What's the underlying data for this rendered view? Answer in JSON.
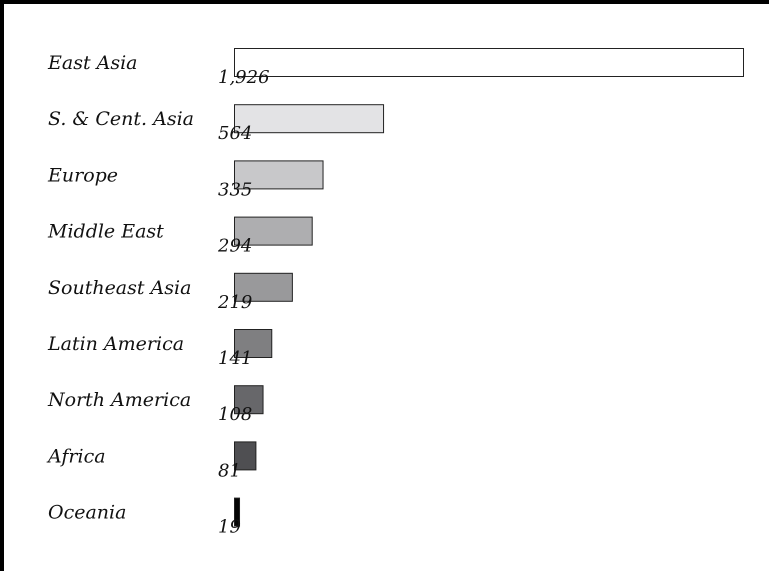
{
  "chart_data": {
    "type": "bar",
    "orientation": "horizontal",
    "title": "",
    "xlabel": "",
    "ylabel": "",
    "categories": [
      "East Asia",
      "S. & Cent. Asia",
      "Europe",
      "Middle East",
      "Southeast Asia",
      "Latin America",
      "North America",
      "Africa",
      "Oceania"
    ],
    "values": [
      1926,
      564,
      335,
      294,
      219,
      141,
      108,
      81,
      19
    ],
    "value_labels": [
      "1,926",
      "564",
      "335",
      "294",
      "219",
      "141",
      "108",
      "81",
      "19"
    ],
    "colors": [
      "#ffffff",
      "#e3e3e5",
      "#c8c8ca",
      "#aeaeb0",
      "#99999b",
      "#7f7f81",
      "#67676a",
      "#4f4f52",
      "#050505"
    ],
    "xlim": [
      0,
      1926
    ],
    "grid": false,
    "legend": "none"
  }
}
